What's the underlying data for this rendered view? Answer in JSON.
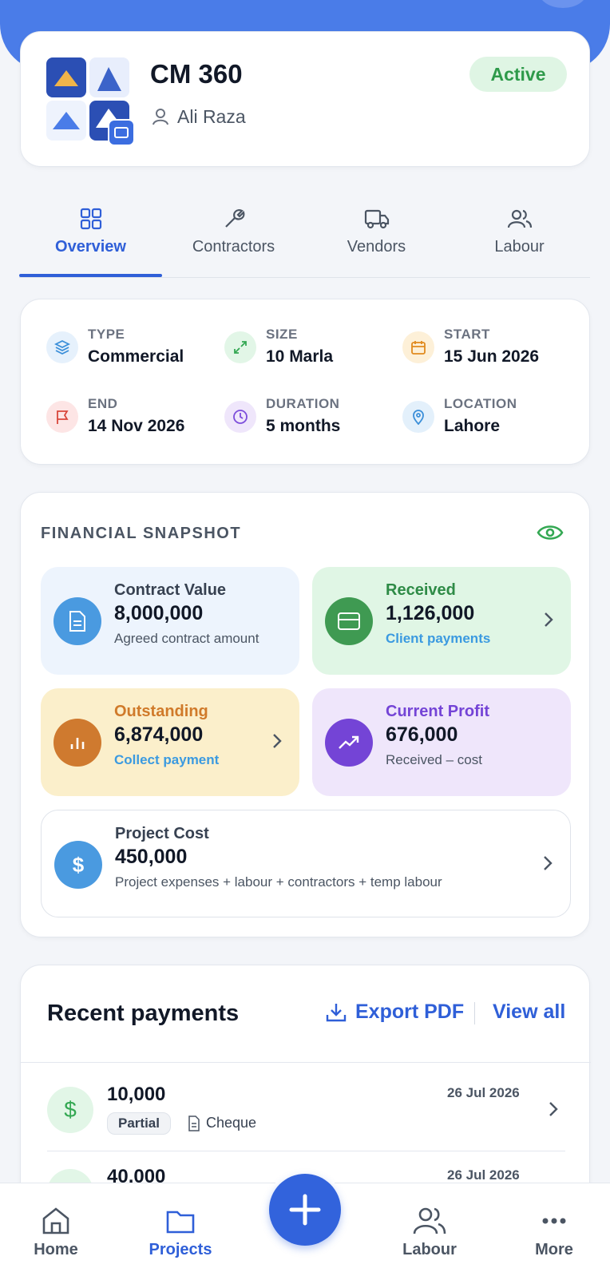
{
  "project": {
    "name": "CM 360",
    "owner": "Ali Raza",
    "status": "Active"
  },
  "tabs": [
    "Overview",
    "Contractors",
    "Vendors",
    "Labour"
  ],
  "details": [
    {
      "label": "TYPE",
      "value": "Commercial"
    },
    {
      "label": "SIZE",
      "value": "10 Marla"
    },
    {
      "label": "START",
      "value": "15 Jun 2026"
    },
    {
      "label": "END",
      "value": "14 Nov 2026"
    },
    {
      "label": "DURATION",
      "value": "5 months"
    },
    {
      "label": "LOCATION",
      "value": "Lahore"
    }
  ],
  "financial": {
    "title": "FINANCIAL SNAPSHOT",
    "cards": [
      {
        "label": "Contract Value",
        "amount": "8,000,000",
        "note": "Agreed contract amount"
      },
      {
        "label": "Received",
        "amount": "1,126,000",
        "note": "Client payments"
      },
      {
        "label": "Outstanding",
        "amount": "6,874,000",
        "note": "Collect payment"
      },
      {
        "label": "Current Profit",
        "amount": "676,000",
        "note": "Received – cost"
      },
      {
        "label": "Project Cost",
        "amount": "450,000",
        "note": "Project expenses + labour + contractors + temp labour"
      }
    ]
  },
  "payments": {
    "title": "Recent payments",
    "export": "Export PDF",
    "view_all": "View all",
    "items": [
      {
        "amount": "10,000",
        "date": "26 Jul 2026",
        "status": "Partial",
        "method": "Cheque"
      },
      {
        "amount": "40,000",
        "date": "26 Jul 2026"
      }
    ]
  },
  "nav": [
    "Home",
    "Projects",
    "Labour",
    "More"
  ]
}
